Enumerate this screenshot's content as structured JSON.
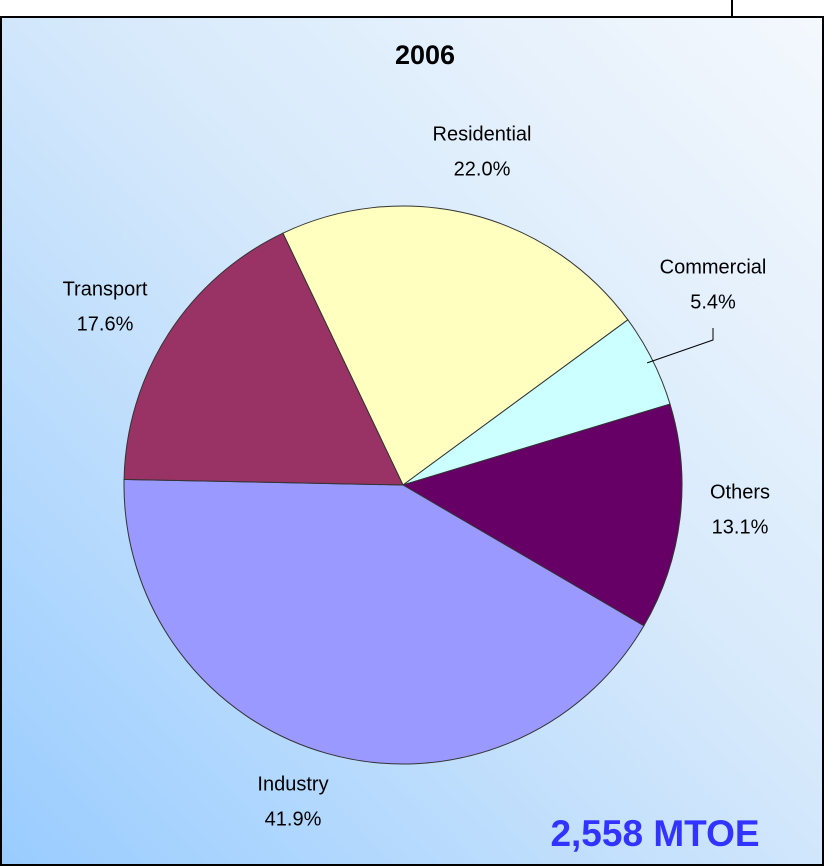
{
  "chart_data": {
    "type": "pie",
    "title": "2006",
    "categories": [
      "Residential",
      "Commercial",
      "Others",
      "Industry",
      "Transport"
    ],
    "values": [
      22.0,
      5.4,
      13.1,
      41.9,
      17.6
    ],
    "value_labels": [
      "22.0%",
      "5.4%",
      "13.1%",
      "41.9%",
      "17.6%"
    ],
    "colors": [
      "#ffffc0",
      "#ccffff",
      "#660066",
      "#9999ff",
      "#993366"
    ],
    "annotation": "2,558 MTOE",
    "annotation_color": "#3333ff"
  }
}
